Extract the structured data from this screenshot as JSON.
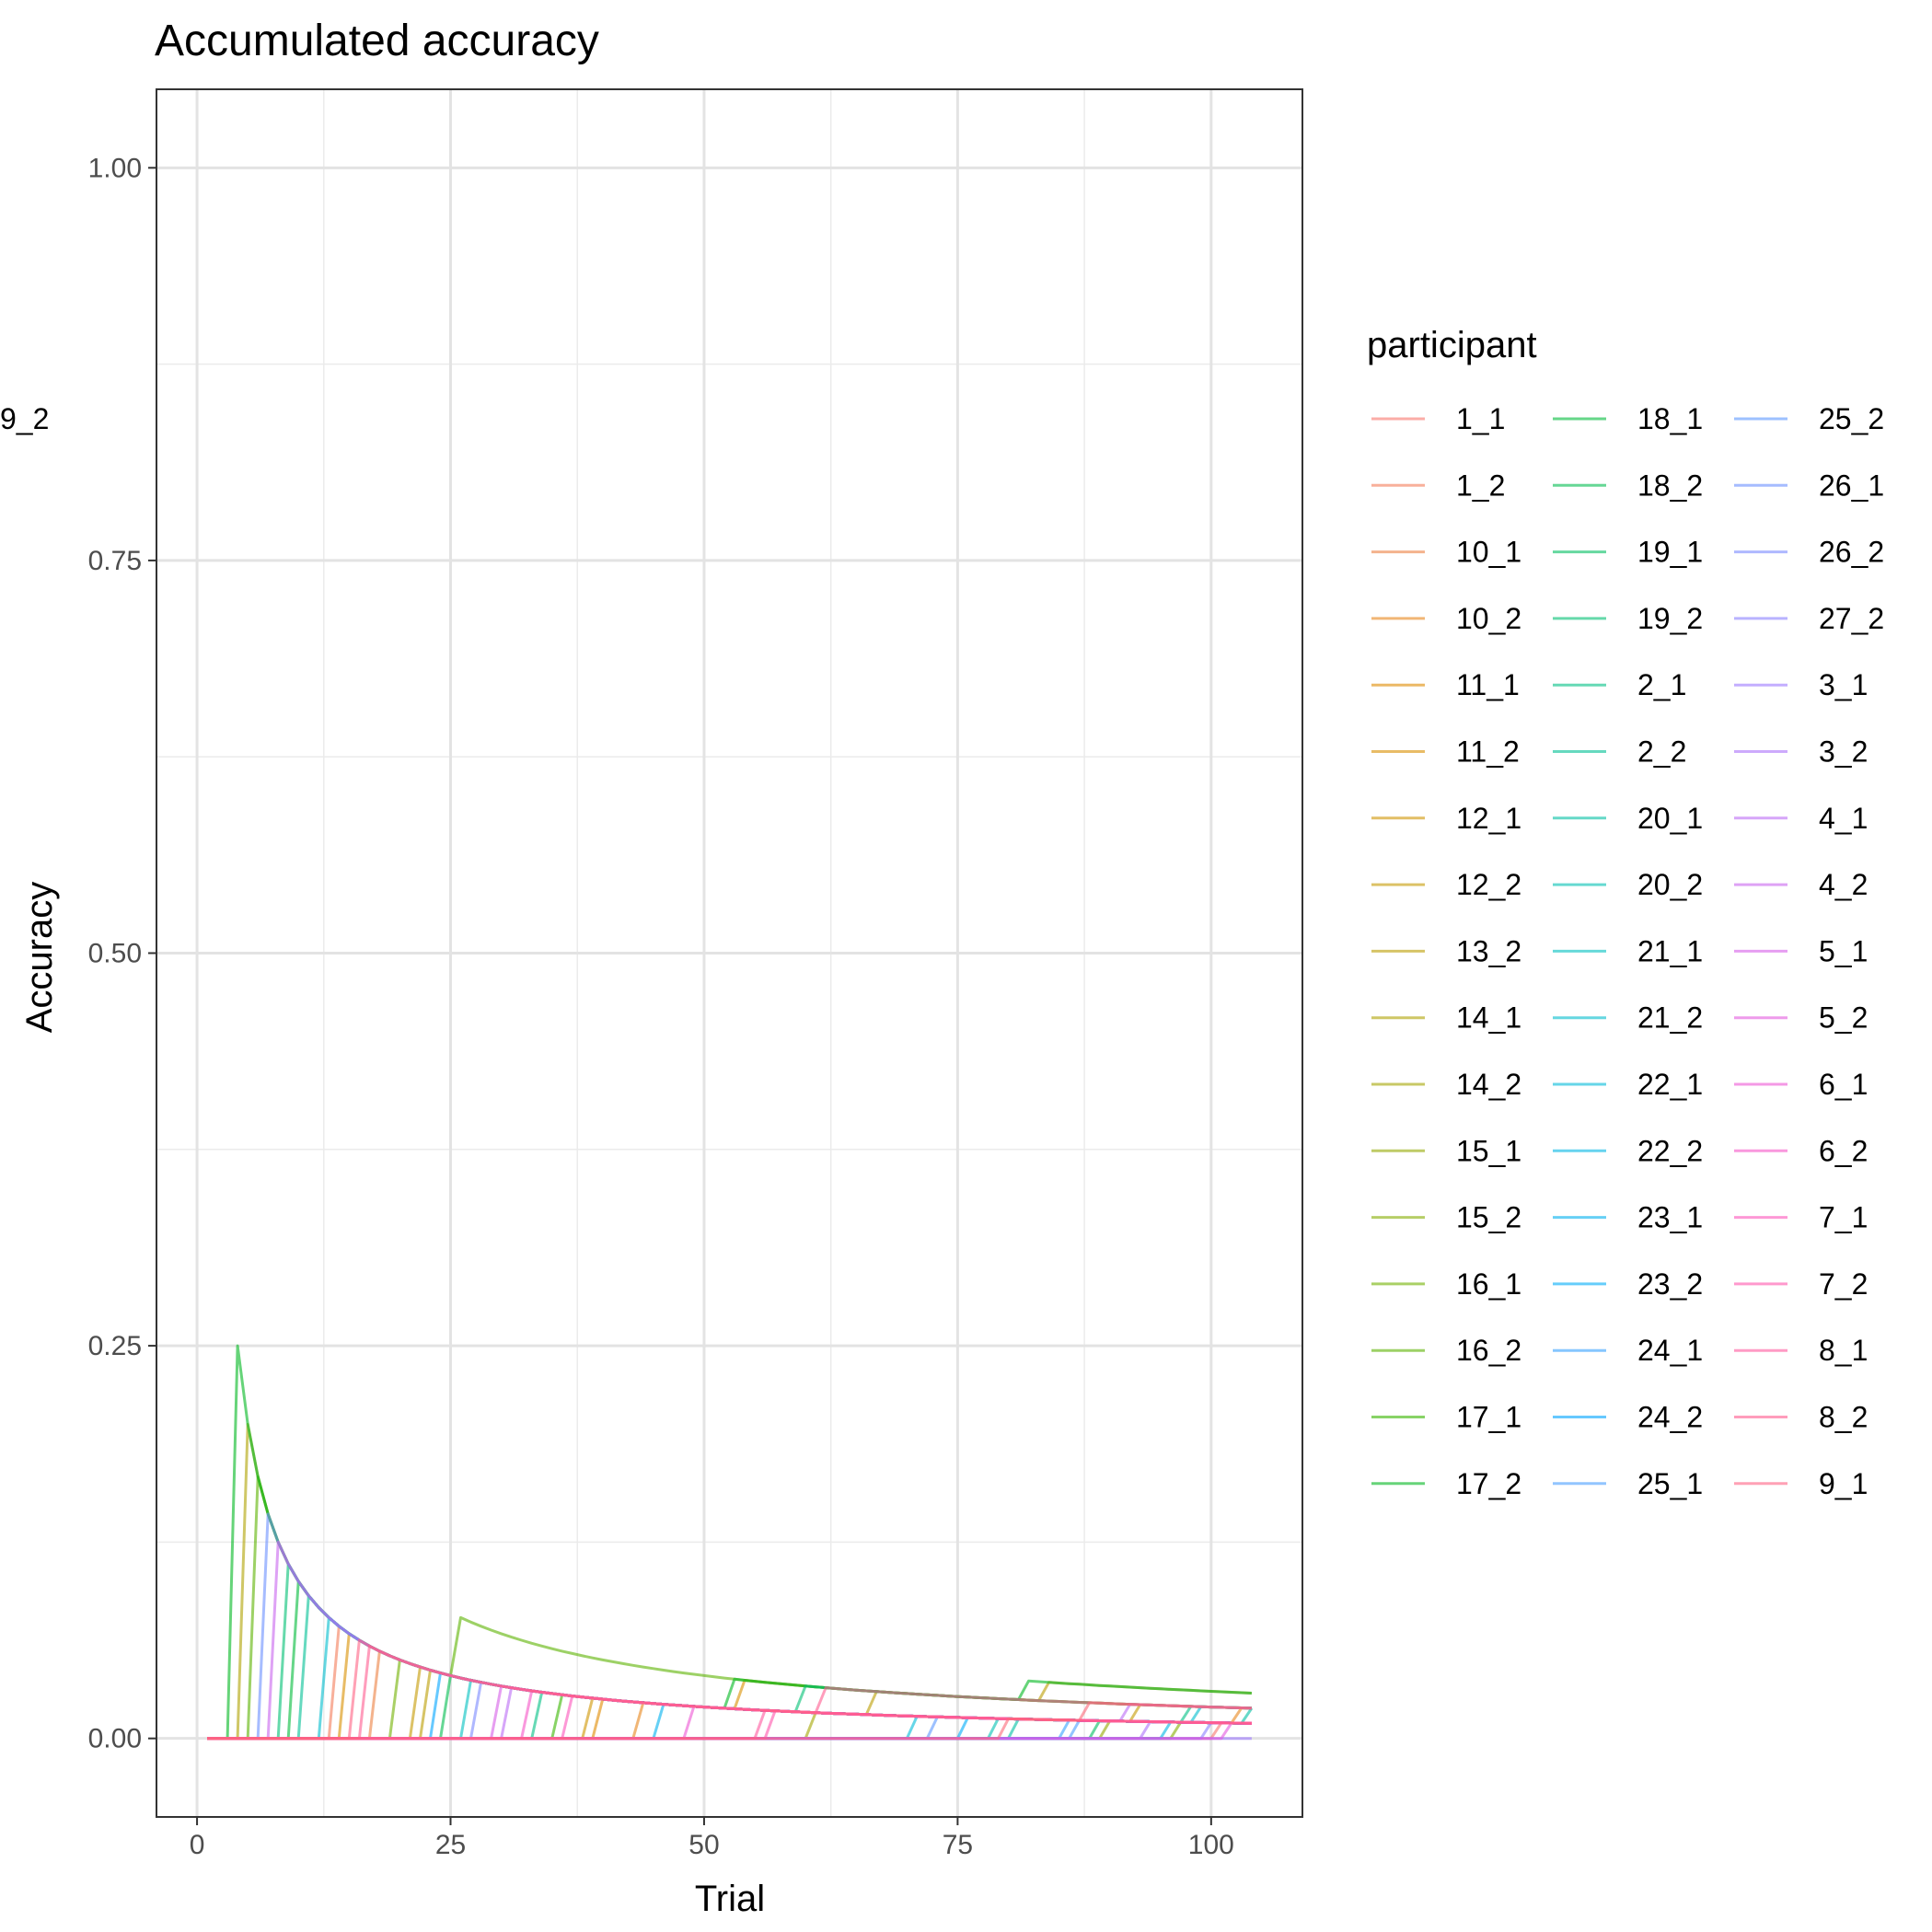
{
  "chart_data": {
    "type": "line",
    "title": "Accumulated accuracy",
    "xlabel": "Trial",
    "ylabel": "Accuracy",
    "xlim": [
      -4,
      109
    ],
    "ylim": [
      -0.05,
      1.05
    ],
    "x_ticks": [
      0,
      25,
      50,
      75,
      100
    ],
    "y_ticks": [
      0.0,
      0.25,
      0.5,
      0.75,
      1.0
    ],
    "x_tick_labels": [
      "0",
      "25",
      "50",
      "75",
      "100"
    ],
    "y_tick_labels": [
      "0.00",
      "0.25",
      "0.50",
      "0.75",
      "1.00"
    ],
    "grid": true,
    "legend_title": "participant",
    "legend_position": "right",
    "line_alpha": 0.6,
    "x_range": [
      1,
      104
    ],
    "series_note_model": "accuracy(t) = 0 before first correct trial k; = 1/t at trial k; cumulative correct count / t afterwards",
    "series": [
      {
        "name": "1_1",
        "color": "#F8766D",
        "events": [
          101
        ]
      },
      {
        "name": "1_2",
        "color": "#F37B59",
        "events": [
          14
        ]
      },
      {
        "name": "10_1",
        "color": "#ED8141",
        "events": [
          18
        ]
      },
      {
        "name": "10_2",
        "color": "#E7861B",
        "events": [
          44,
          103
        ]
      },
      {
        "name": "11_1",
        "color": "#E08B00",
        "events": [
          40
        ]
      },
      {
        "name": "11_2",
        "color": "#D89000",
        "events": [
          15,
          54
        ]
      },
      {
        "name": "12_1",
        "color": "#CF9400",
        "events": [
          39
        ]
      },
      {
        "name": "12_2",
        "color": "#C59900",
        "events": [
          22,
          93
        ]
      },
      {
        "name": "13_2",
        "color": "#BB9D00",
        "events": [
          23,
          67,
          84
        ]
      },
      {
        "name": "14_1",
        "color": "#AFA100",
        "events": [
          5
        ]
      },
      {
        "name": "14_2",
        "color": "#A3A500",
        "events": [
          61
        ]
      },
      {
        "name": "15_1",
        "color": "#95A900",
        "events": [
          90
        ]
      },
      {
        "name": "15_2",
        "color": "#85AD00",
        "events": [
          97
        ]
      },
      {
        "name": "16_1",
        "color": "#72B000",
        "events": [
          20
        ]
      },
      {
        "name": "16_2",
        "color": "#5BB300",
        "events": [
          6,
          26
        ]
      },
      {
        "name": "17_1",
        "color": "#39B600",
        "events": [
          36
        ]
      },
      {
        "name": "17_2",
        "color": "#00B81F",
        "events": [
          4,
          53,
          82
        ]
      },
      {
        "name": "18_1",
        "color": "#00BA38",
        "events": [
          10
        ]
      },
      {
        "name": "18_2",
        "color": "#00BC4E",
        "events": [
          25
        ]
      },
      {
        "name": "19_1",
        "color": "#00BE61",
        "events": [
          89
        ]
      },
      {
        "name": "19_2",
        "color": "#00BF73",
        "events": [
          9,
          60
        ]
      },
      {
        "name": "2_1",
        "color": "#00C084",
        "events": [
          34,
          98
        ]
      },
      {
        "name": "2_2",
        "color": "#00C094",
        "events": [
          11
        ]
      },
      {
        "name": "20_1",
        "color": "#00C0A3",
        "events": [
          81,
          104
        ]
      },
      {
        "name": "20_2",
        "color": "#00C0B2",
        "events": [
          79
        ]
      },
      {
        "name": "21_1",
        "color": "#00BFC0",
        "events": [
          27
        ]
      },
      {
        "name": "21_2",
        "color": "#00BDCD",
        "events": [
          13,
          99
        ]
      },
      {
        "name": "22_1",
        "color": "#00BAD9",
        "events": [
          71
        ]
      },
      {
        "name": "22_2",
        "color": "#00B6E5",
        "events": [
          96
        ]
      },
      {
        "name": "23_1",
        "color": "#00B1EF",
        "events": [
          46
        ]
      },
      {
        "name": "23_2",
        "color": "#00ABF8",
        "events": [
          76
        ]
      },
      {
        "name": "24_1",
        "color": "#35A2FF",
        "events": [
          86
        ]
      },
      {
        "name": "24_2",
        "color": "#00A5FF",
        "events": [
          24
        ]
      },
      {
        "name": "25_1",
        "color": "#4A9FFF",
        "events": [
          87
        ]
      },
      {
        "name": "25_2",
        "color": "#5B97FF",
        "events": [
          73
        ]
      },
      {
        "name": "26_1",
        "color": "#6A8FFF",
        "events": [
          7
        ]
      },
      {
        "name": "26_2",
        "color": "#7A88FF",
        "events": [
          28
        ]
      },
      {
        "name": "27_2",
        "color": "#8B80FF",
        "events": [
          100
        ]
      },
      {
        "name": "3_1",
        "color": "#9C78FF",
        "events": []
      },
      {
        "name": "3_2",
        "color": "#AB71FA",
        "events": [
          94
        ]
      },
      {
        "name": "4_1",
        "color": "#BA6AF5",
        "events": [
          31,
          92
        ]
      },
      {
        "name": "4_2",
        "color": "#C864EF",
        "events": [
          8
        ]
      },
      {
        "name": "5_1",
        "color": "#D65EE8",
        "events": [
          30
        ]
      },
      {
        "name": "5_2",
        "color": "#E259DE",
        "events": [
          102
        ]
      },
      {
        "name": "6_1",
        "color": "#ED55D3",
        "events": [
          49
        ]
      },
      {
        "name": "6_2",
        "color": "#F553C7",
        "events": [
          33
        ]
      },
      {
        "name": "7_1",
        "color": "#FB53BA",
        "events": [
          37
        ]
      },
      {
        "name": "7_2",
        "color": "#FF55AC",
        "events": [
          57
        ]
      },
      {
        "name": "8_1",
        "color": "#FF589E",
        "events": [
          56
        ]
      },
      {
        "name": "8_2",
        "color": "#FF5C90",
        "events": [
          17,
          62
        ]
      },
      {
        "name": "9_1",
        "color": "#FF6283",
        "events": [
          16
        ]
      },
      {
        "name": "9_2",
        "color": "#FC6878",
        "events": [
          80,
          88
        ]
      }
    ]
  }
}
